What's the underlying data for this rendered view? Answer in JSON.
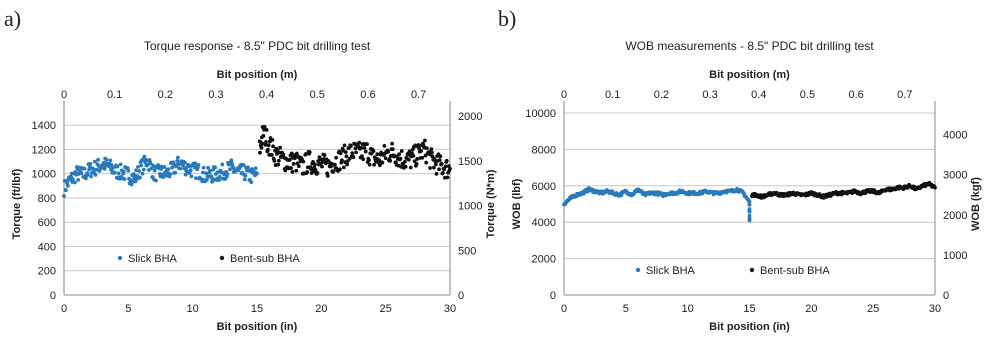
{
  "panels": [
    {
      "letter": "a)",
      "chart_index": 0
    },
    {
      "letter": "b)",
      "chart_index": 1
    }
  ],
  "colors": {
    "slick": "#2a7ab9",
    "bent": "#111111",
    "grid": "#c8c8c8"
  },
  "chart_data": [
    {
      "type": "scatter",
      "title": "Torque response - 8.5\" PDC bit  drilling test",
      "xlabel": "Bit position (in)",
      "x2label": "Bit position (m)",
      "ylabel": "Torque (ft/lbf)",
      "y2label": "Torque (N*m)",
      "xlim": [
        0,
        30
      ],
      "ylim": [
        0,
        1500
      ],
      "x2lim": [
        0,
        0.762
      ],
      "y2lim": [
        0,
        2034
      ],
      "x_ticks": [
        "0",
        "5",
        "10",
        "15",
        "20",
        "25",
        "30"
      ],
      "y_ticks": [
        "0",
        "200",
        "400",
        "600",
        "800",
        "1000",
        "1200",
        "1400"
      ],
      "x2_ticks": [
        "0",
        "0.1",
        "0.2",
        "0.3",
        "0.4",
        "0.5",
        "0.6",
        "0.7"
      ],
      "y2_ticks": [
        "0",
        "500",
        "1000",
        "1500",
        "2000"
      ],
      "grid": true,
      "legend": "bottom-left",
      "series": [
        {
          "name": "Slick BHA",
          "color": "#2a7ab9",
          "x": [
            0.0,
            0.5,
            1.0,
            1.5,
            2.0,
            2.5,
            3.0,
            3.5,
            4.0,
            4.5,
            5.0,
            5.5,
            6.0,
            6.5,
            7.0,
            7.5,
            8.0,
            8.5,
            9.0,
            9.5,
            10.0,
            10.5,
            11.0,
            11.5,
            12.0,
            12.5,
            13.0,
            13.5,
            14.0,
            14.5,
            15.0
          ],
          "y": [
            880,
            950,
            1000,
            990,
            1030,
            1050,
            1080,
            1060,
            1020,
            1010,
            990,
            960,
            1050,
            1110,
            1000,
            1010,
            1000,
            1040,
            1090,
            1050,
            1030,
            1020,
            980,
            990,
            1000,
            1020,
            1050,
            1010,
            1010,
            980,
            1000
          ],
          "spread": 65
        },
        {
          "name": "Bent-sub BHA",
          "color": "#111111",
          "x": [
            15.2,
            15.5,
            16.0,
            16.5,
            17.0,
            17.5,
            18.0,
            18.5,
            19.0,
            19.5,
            20.0,
            20.5,
            21.0,
            21.5,
            22.0,
            22.5,
            23.0,
            23.5,
            24.0,
            24.5,
            25.0,
            25.5,
            26.0,
            26.5,
            27.0,
            27.5,
            28.0,
            28.5,
            29.0,
            29.5,
            30.0
          ],
          "y": [
            1200,
            1340,
            1230,
            1150,
            1120,
            1090,
            1100,
            1050,
            1100,
            1080,
            1080,
            1060,
            1100,
            1120,
            1160,
            1180,
            1170,
            1190,
            1130,
            1110,
            1160,
            1180,
            1140,
            1110,
            1120,
            1160,
            1200,
            1120,
            1080,
            1050,
            1040
          ],
          "spread": 90
        }
      ]
    },
    {
      "type": "scatter",
      "title": "WOB measurements - 8.5\" PDC bit  drilling test",
      "xlabel": "Bit position (in)",
      "x2label": "Bit position (m)",
      "ylabel": "WOB (lbf)",
      "y2label": "WOB (kgf)",
      "xlim": [
        0,
        30
      ],
      "ylim": [
        0,
        10000
      ],
      "x2lim": [
        0,
        0.762
      ],
      "y2lim": [
        0,
        4536
      ],
      "x_ticks": [
        "0",
        "5",
        "10",
        "15",
        "20",
        "25",
        "30"
      ],
      "y_ticks": [
        "0",
        "2000",
        "4000",
        "6000",
        "8000",
        "10000"
      ],
      "x2_ticks": [
        "0",
        "0.1",
        "0.2",
        "0.3",
        "0.4",
        "0.5",
        "0.6",
        "0.7"
      ],
      "y2_ticks": [
        "0",
        "1000",
        "2000",
        "3000",
        "4000"
      ],
      "grid": true,
      "legend": "bottom-center",
      "series": [
        {
          "name": "Slick BHA",
          "color": "#2a7ab9",
          "x": [
            0.0,
            0.5,
            1.0,
            1.5,
            2.0,
            2.5,
            3.0,
            3.5,
            4.0,
            4.5,
            5.0,
            5.5,
            6.0,
            6.5,
            7.0,
            7.5,
            8.0,
            8.5,
            9.0,
            9.5,
            10.0,
            10.5,
            11.0,
            11.5,
            12.0,
            12.5,
            13.0,
            13.5,
            14.0,
            14.5,
            15.0,
            15.0
          ],
          "y": [
            5000,
            5300,
            5500,
            5600,
            5800,
            5700,
            5600,
            5700,
            5600,
            5500,
            5700,
            5500,
            5800,
            5500,
            5600,
            5600,
            5500,
            5600,
            5600,
            5700,
            5600,
            5600,
            5600,
            5700,
            5600,
            5600,
            5700,
            5700,
            5800,
            5600,
            5100,
            4100
          ],
          "spread": 80
        },
        {
          "name": "Bent-sub BHA",
          "color": "#111111",
          "x": [
            15.2,
            15.5,
            16.0,
            16.5,
            17.0,
            17.5,
            18.0,
            18.5,
            19.0,
            19.5,
            20.0,
            20.5,
            21.0,
            21.5,
            22.0,
            22.5,
            23.0,
            23.5,
            24.0,
            24.5,
            25.0,
            25.5,
            26.0,
            26.5,
            27.0,
            27.5,
            28.0,
            28.5,
            29.0,
            29.5,
            30.0
          ],
          "y": [
            5500,
            5500,
            5400,
            5500,
            5600,
            5500,
            5500,
            5600,
            5500,
            5500,
            5600,
            5500,
            5400,
            5500,
            5600,
            5600,
            5600,
            5700,
            5600,
            5700,
            5700,
            5600,
            5800,
            5800,
            5900,
            5900,
            6000,
            5800,
            6000,
            6100,
            5900
          ],
          "spread": 80
        }
      ]
    }
  ]
}
